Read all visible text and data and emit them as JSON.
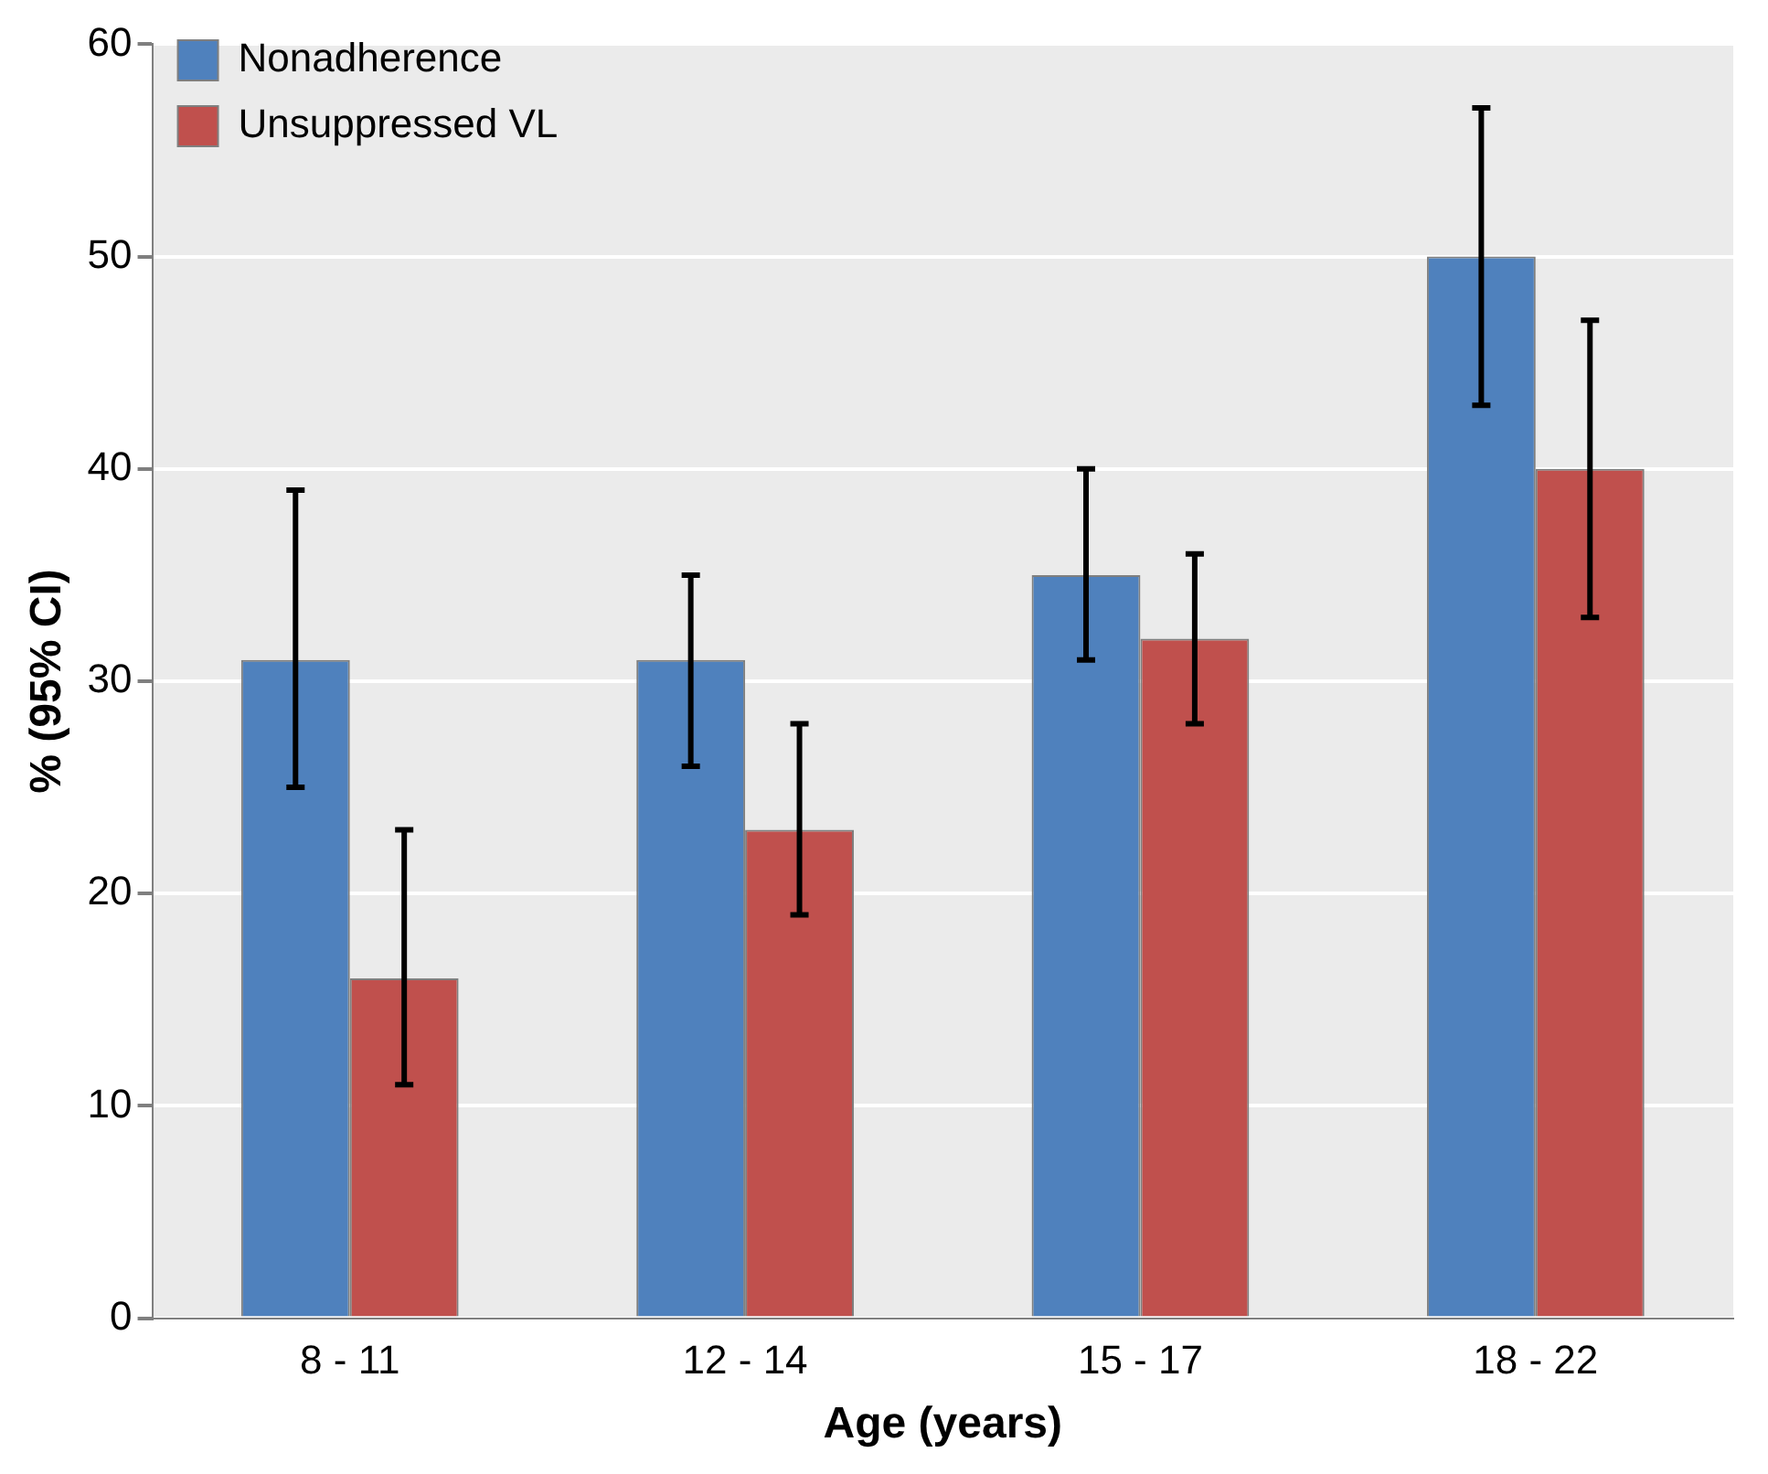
{
  "chart_data": {
    "type": "bar",
    "xlabel": "Age (years)",
    "ylabel": "% (95% CI)",
    "categories": [
      "8 - 11",
      "12 - 14",
      "15 - 17",
      "18 - 22"
    ],
    "series": [
      {
        "name": "Nonadherence",
        "color": "#4f81bd",
        "values": [
          31,
          31,
          35,
          50
        ],
        "errors": [
          [
            25,
            39
          ],
          [
            26,
            35
          ],
          [
            31,
            40
          ],
          [
            43,
            57
          ]
        ]
      },
      {
        "name": "Unsuppressed VL",
        "color": "#c0504d",
        "values": [
          16,
          23,
          32,
          40
        ],
        "errors": [
          [
            11,
            23
          ],
          [
            19,
            28
          ],
          [
            28,
            36
          ],
          [
            33,
            47
          ]
        ]
      }
    ],
    "ylim": [
      0,
      60
    ],
    "yticks": [
      0,
      10,
      20,
      30,
      40,
      50,
      60
    ],
    "grid": "y",
    "legend": "top left"
  }
}
